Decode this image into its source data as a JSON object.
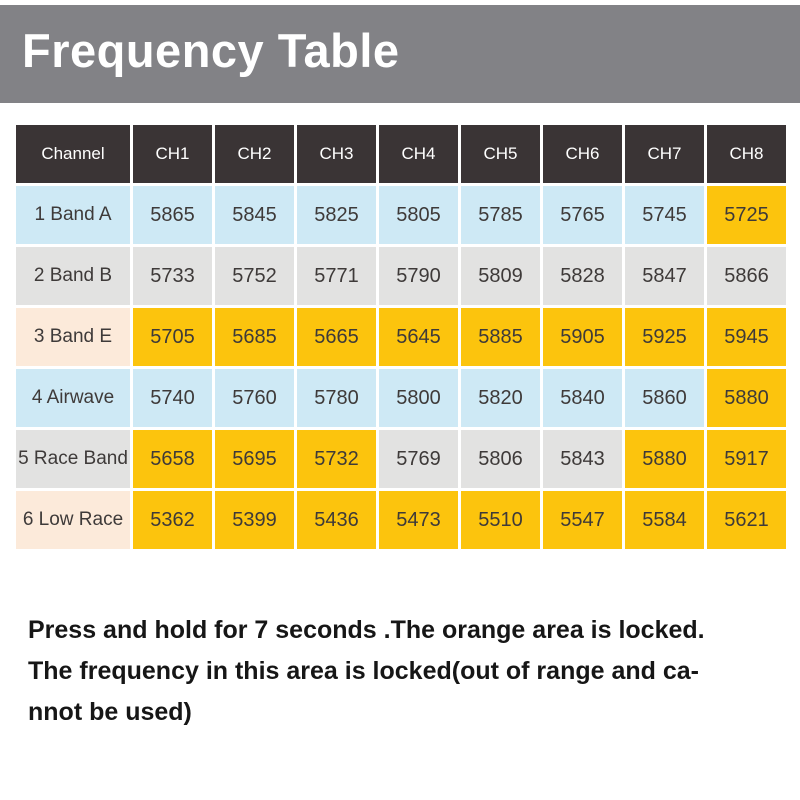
{
  "banner": {
    "title": "Frequency Table"
  },
  "colors": {
    "banner_bg": "#828286",
    "header_bg": "#3A3435",
    "blue": "#CEE9F5",
    "gray": "#E2E2E1",
    "peach": "#FCEADA",
    "orange": "#FCC40D",
    "cell_text": "#3E3A39",
    "note_text": "#161616"
  },
  "table": {
    "header": [
      "Channel",
      "CH1",
      "CH2",
      "CH3",
      "CH4",
      "CH5",
      "CH6",
      "CH7",
      "CH8"
    ],
    "rows": [
      {
        "label": "1 Band A",
        "label_bg": "blue",
        "cell_bg": "blue",
        "values": [
          "5865",
          "5845",
          "5825",
          "5805",
          "5785",
          "5765",
          "5745",
          "5725"
        ],
        "locked": [
          false,
          false,
          false,
          false,
          false,
          false,
          false,
          true
        ]
      },
      {
        "label": "2 Band B",
        "label_bg": "gray",
        "cell_bg": "gray",
        "values": [
          "5733",
          "5752",
          "5771",
          "5790",
          "5809",
          "5828",
          "5847",
          "5866"
        ],
        "locked": [
          false,
          false,
          false,
          false,
          false,
          false,
          false,
          false
        ]
      },
      {
        "label": "3 Band E",
        "label_bg": "peach",
        "cell_bg": "gray",
        "values": [
          "5705",
          "5685",
          "5665",
          "5645",
          "5885",
          "5905",
          "5925",
          "5945"
        ],
        "locked": [
          true,
          true,
          true,
          true,
          true,
          true,
          true,
          true
        ]
      },
      {
        "label": "4 Airwave",
        "label_bg": "blue",
        "cell_bg": "blue",
        "values": [
          "5740",
          "5760",
          "5780",
          "5800",
          "5820",
          "5840",
          "5860",
          "5880"
        ],
        "locked": [
          false,
          false,
          false,
          false,
          false,
          false,
          false,
          true
        ]
      },
      {
        "label": "5 Race Band",
        "label_bg": "gray",
        "cell_bg": "gray",
        "values": [
          "5658",
          "5695",
          "5732",
          "5769",
          "5806",
          "5843",
          "5880",
          "5917"
        ],
        "locked": [
          true,
          true,
          true,
          false,
          false,
          false,
          true,
          true
        ]
      },
      {
        "label": "6 Low Race",
        "label_bg": "peach",
        "cell_bg": "gray",
        "values": [
          "5362",
          "5399",
          "5436",
          "5473",
          "5510",
          "5547",
          "5584",
          "5621"
        ],
        "locked": [
          true,
          true,
          true,
          true,
          true,
          true,
          true,
          true
        ]
      }
    ]
  },
  "note": {
    "lines": [
      "Press and hold for 7 seconds .The orange area is locked.",
      "The frequency in this area is locked(out of range and ca-",
      "nnot be used)"
    ]
  }
}
